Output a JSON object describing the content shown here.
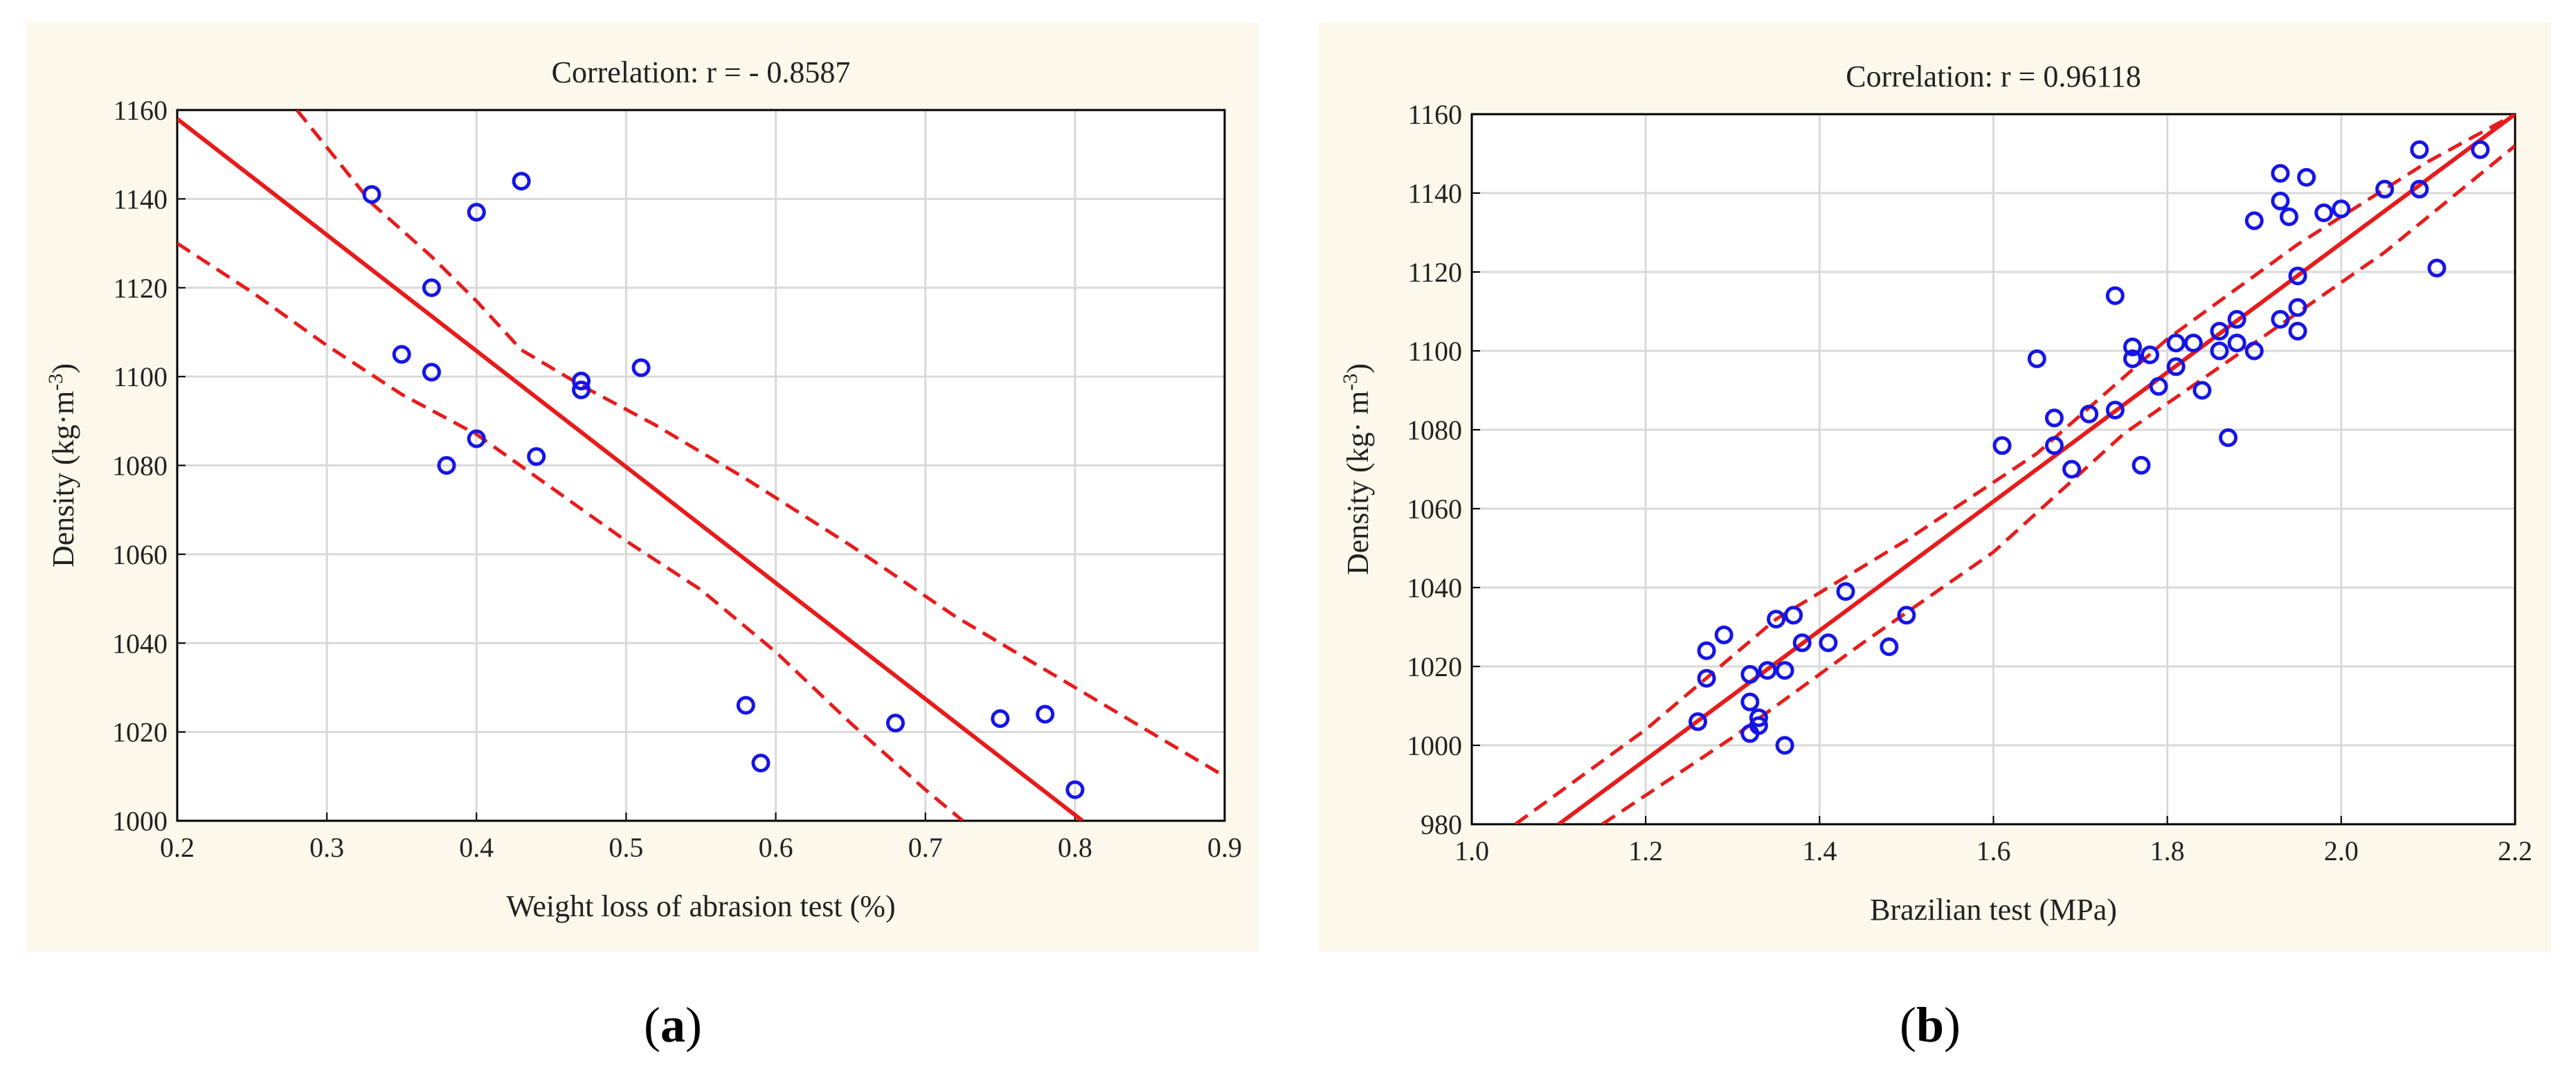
{
  "chart_data": [
    {
      "id": "a",
      "type": "scatter",
      "title": "Correlation: r = - 0.8587",
      "xlabel": "Weight loss of abrasion test (%)",
      "ylabel": "Density (kg·m-3)",
      "ylabel_main": "Density (kg",
      "ylabel_unit": "m",
      "ylabel_exp": "-3",
      "xlim": [
        0.2,
        0.9
      ],
      "ylim": [
        1000,
        1160
      ],
      "xticks": [
        0.2,
        0.3,
        0.4,
        0.5,
        0.6,
        0.7,
        0.8,
        0.9
      ],
      "xtick_labels": [
        "0.2",
        "0.3",
        "0.4",
        "0.5",
        "0.6",
        "0.7",
        "0.8",
        "0.9"
      ],
      "yticks": [
        1000,
        1020,
        1040,
        1060,
        1080,
        1100,
        1120,
        1140,
        1160
      ],
      "ytick_labels": [
        "1000",
        "1020",
        "1040",
        "1060",
        "1080",
        "1100",
        "1120",
        "1140",
        "1160"
      ],
      "points": [
        [
          0.33,
          1141
        ],
        [
          0.35,
          1105
        ],
        [
          0.37,
          1120
        ],
        [
          0.37,
          1101
        ],
        [
          0.38,
          1080
        ],
        [
          0.4,
          1137
        ],
        [
          0.4,
          1086
        ],
        [
          0.43,
          1144
        ],
        [
          0.44,
          1082
        ],
        [
          0.47,
          1099
        ],
        [
          0.47,
          1097
        ],
        [
          0.51,
          1102
        ],
        [
          0.58,
          1026
        ],
        [
          0.59,
          1013
        ],
        [
          0.68,
          1022
        ],
        [
          0.75,
          1023
        ],
        [
          0.78,
          1024
        ],
        [
          0.8,
          1007
        ]
      ],
      "fit_line": {
        "x": [
          0.2,
          0.805
        ],
        "y": [
          1158,
          1000
        ]
      },
      "confidence_upper": {
        "x": [
          0.28,
          0.33,
          0.37,
          0.4,
          0.43,
          0.47,
          0.52,
          0.58,
          0.65,
          0.72,
          0.78,
          0.82,
          0.86,
          0.9
        ],
        "y": [
          1160,
          1139,
          1127,
          1117,
          1106,
          1098,
          1089,
          1077,
          1062,
          1046,
          1034,
          1026,
          1018,
          1010
        ]
      },
      "confidence_lower": {
        "x": [
          0.2,
          0.25,
          0.3,
          0.35,
          0.4,
          0.45,
          0.5,
          0.55,
          0.6,
          0.65,
          0.7,
          0.725
        ],
        "y": [
          1130,
          1119,
          1107,
          1096,
          1087,
          1075,
          1063,
          1052,
          1038,
          1022,
          1007,
          1000
        ]
      },
      "colors": {
        "points": "#1515e6",
        "fit": "#e61c1c",
        "background": "#fdf8ec",
        "grid": "#d9d9d9"
      }
    },
    {
      "id": "b",
      "type": "scatter",
      "title": "Correlation: r =  0.96118",
      "xlabel": "Brazilian test (MPa)",
      "ylabel": "Density (kg· m-3)",
      "ylabel_main": "Density (kg",
      "ylabel_unit": " m",
      "ylabel_exp": "-3",
      "xlim": [
        1.0,
        2.2
      ],
      "ylim": [
        980,
        1160
      ],
      "xticks": [
        1.0,
        1.2,
        1.4,
        1.6,
        1.8,
        2.0,
        2.2
      ],
      "xtick_labels": [
        "1.0",
        "1.2",
        "1.4",
        "1.6",
        "1.8",
        "2.0",
        "2.2"
      ],
      "yticks": [
        980,
        1000,
        1020,
        1040,
        1060,
        1080,
        1100,
        1120,
        1140,
        1160
      ],
      "ytick_labels": [
        "980",
        "1000",
        "1020",
        "1040",
        "1060",
        "1080",
        "1100",
        "1120",
        "1140",
        "1160"
      ],
      "points": [
        [
          1.26,
          1006
        ],
        [
          1.27,
          1024
        ],
        [
          1.27,
          1017
        ],
        [
          1.29,
          1028
        ],
        [
          1.32,
          1018
        ],
        [
          1.32,
          1011
        ],
        [
          1.33,
          1007
        ],
        [
          1.32,
          1003
        ],
        [
          1.33,
          1005
        ],
        [
          1.34,
          1019
        ],
        [
          1.35,
          1032
        ],
        [
          1.36,
          1000
        ],
        [
          1.36,
          1019
        ],
        [
          1.37,
          1033
        ],
        [
          1.38,
          1026
        ],
        [
          1.41,
          1026
        ],
        [
          1.43,
          1039
        ],
        [
          1.48,
          1025
        ],
        [
          1.5,
          1033
        ],
        [
          1.61,
          1076
        ],
        [
          1.65,
          1098
        ],
        [
          1.67,
          1083
        ],
        [
          1.67,
          1076
        ],
        [
          1.69,
          1070
        ],
        [
          1.71,
          1084
        ],
        [
          1.74,
          1085
        ],
        [
          1.74,
          1114
        ],
        [
          1.76,
          1098
        ],
        [
          1.76,
          1101
        ],
        [
          1.77,
          1071
        ],
        [
          1.78,
          1099
        ],
        [
          1.79,
          1091
        ],
        [
          1.81,
          1102
        ],
        [
          1.81,
          1096
        ],
        [
          1.83,
          1102
        ],
        [
          1.84,
          1090
        ],
        [
          1.86,
          1105
        ],
        [
          1.86,
          1100
        ],
        [
          1.87,
          1078
        ],
        [
          1.88,
          1108
        ],
        [
          1.88,
          1102
        ],
        [
          1.9,
          1100
        ],
        [
          1.9,
          1133
        ],
        [
          1.93,
          1145
        ],
        [
          1.93,
          1138
        ],
        [
          1.93,
          1108
        ],
        [
          1.94,
          1134
        ],
        [
          1.95,
          1119
        ],
        [
          1.95,
          1111
        ],
        [
          1.95,
          1105
        ],
        [
          1.96,
          1144
        ],
        [
          1.98,
          1135
        ],
        [
          2.0,
          1136
        ],
        [
          2.05,
          1141
        ],
        [
          2.09,
          1151
        ],
        [
          2.09,
          1141
        ],
        [
          2.11,
          1121
        ],
        [
          2.16,
          1151
        ]
      ],
      "fit_line": {
        "x": [
          1.1,
          2.2
        ],
        "y": [
          980,
          1160
        ]
      },
      "confidence_upper": {
        "x": [
          1.05,
          1.2,
          1.35,
          1.5,
          1.65,
          1.8,
          1.95,
          2.1,
          2.2
        ],
        "y": [
          980,
          1004,
          1032,
          1052,
          1074,
          1103,
          1127,
          1148,
          1160
        ]
      },
      "confidence_lower": {
        "x": [
          1.15,
          1.3,
          1.45,
          1.6,
          1.75,
          1.9,
          2.05,
          2.2
        ],
        "y": [
          980,
          1002,
          1026,
          1049,
          1079,
          1102,
          1125,
          1152
        ]
      },
      "colors": {
        "points": "#1515e6",
        "fit": "#e61c1c",
        "background": "#fdf8ec",
        "grid": "#d9d9d9"
      }
    }
  ],
  "captions": [
    "a",
    "b"
  ]
}
